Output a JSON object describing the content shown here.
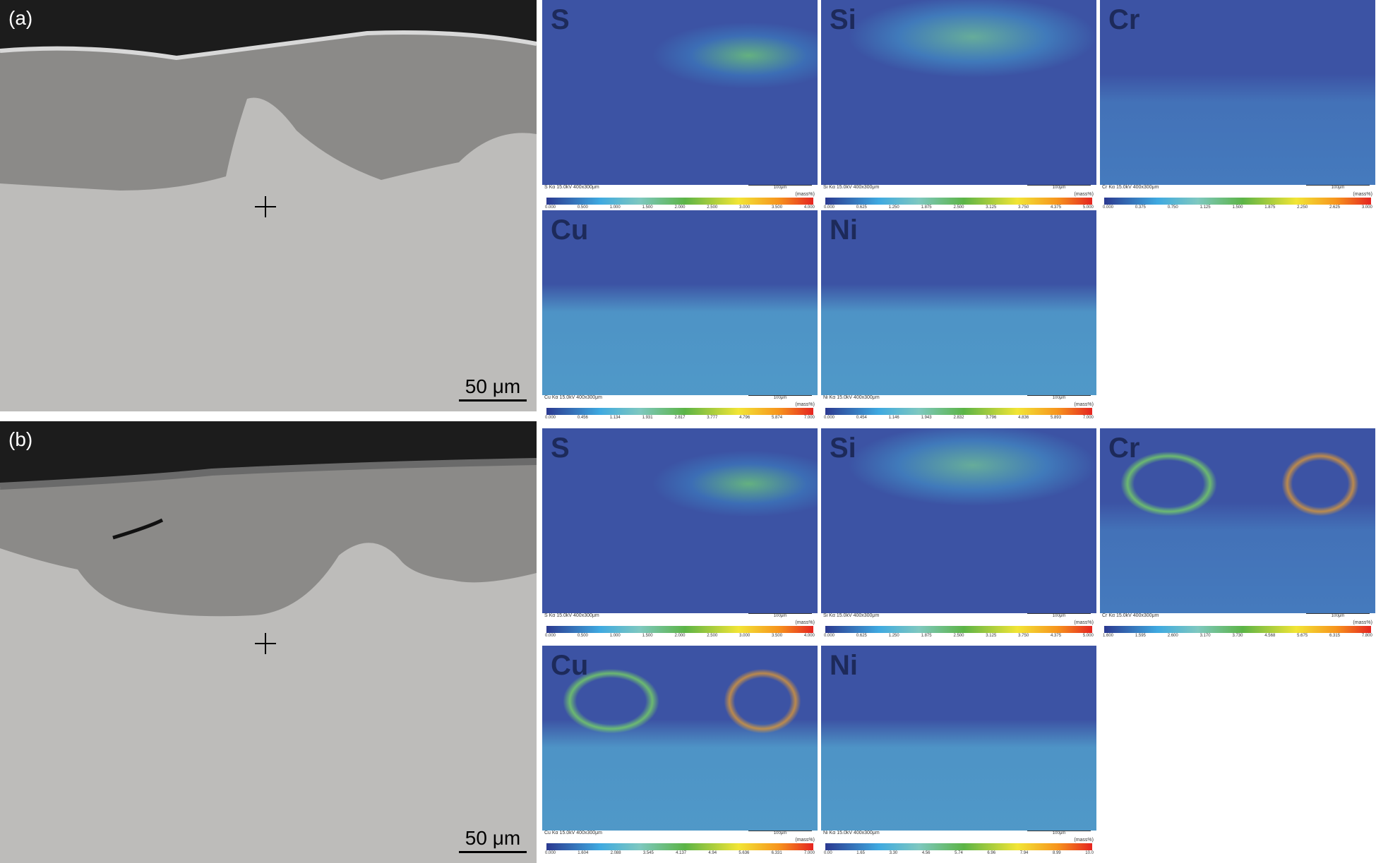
{
  "panels": [
    {
      "label": "(a)",
      "scale_bar": "50 μm",
      "maps": [
        {
          "element": "S",
          "caption": "S Kα 15.0kV 400x300μm",
          "scale": "100μm",
          "unit": "(mass%)",
          "ticks": [
            "0.000",
            "0.500",
            "1.000",
            "1.500",
            "2.000",
            "2.500",
            "3.000",
            "3.500",
            "4.000"
          ]
        },
        {
          "element": "Si",
          "caption": "Si Kα 15.0kV 400x300μm",
          "scale": "100μm",
          "unit": "(mass%)",
          "ticks": [
            "0.000",
            "0.625",
            "1.250",
            "1.875",
            "2.500",
            "3.125",
            "3.750",
            "4.375",
            "5.000"
          ]
        },
        {
          "element": "Cr",
          "caption": "Cr Kα 15.0kV 400x300μm",
          "scale": "100μm",
          "unit": "(mass%)",
          "ticks": [
            "0.000",
            "0.375",
            "0.750",
            "1.125",
            "1.500",
            "1.875",
            "2.250",
            "2.625",
            "3.000"
          ]
        },
        {
          "element": "Cu",
          "caption": "Cu Kα 15.0kV 400x300μm",
          "scale": "100μm",
          "unit": "(mass%)",
          "ticks": [
            "0.000",
            "0.456",
            "1.134",
            "1.931",
            "2.817",
            "3.777",
            "4.796",
            "5.874",
            "7.000"
          ]
        },
        {
          "element": "Ni",
          "caption": "Ni Kα 15.0kV 400x300μm",
          "scale": "100μm",
          "unit": "(mass%)",
          "ticks": [
            "0.000",
            "0.454",
            "1.146",
            "1.943",
            "2.832",
            "3.796",
            "4.836",
            "5.893",
            "7.000"
          ]
        }
      ]
    },
    {
      "label": "(b)",
      "scale_bar": "50 μm",
      "maps": [
        {
          "element": "S",
          "caption": "S Kα 15.0kV 400x300μm",
          "scale": "100μm",
          "unit": "(mass%)",
          "ticks": [
            "0.000",
            "0.500",
            "1.000",
            "1.500",
            "2.000",
            "2.500",
            "3.000",
            "3.500",
            "4.000"
          ]
        },
        {
          "element": "Si",
          "caption": "Si Kα 15.0kV 400x300μm",
          "scale": "100μm",
          "unit": "(mass%)",
          "ticks": [
            "0.000",
            "0.625",
            "1.250",
            "1.875",
            "2.500",
            "3.125",
            "3.750",
            "4.375",
            "5.000"
          ]
        },
        {
          "element": "Cr",
          "caption": "Cr Kα 15.0kV 400x300μm",
          "scale": "100μm",
          "unit": "(mass%)",
          "ticks": [
            "1.600",
            "1.595",
            "2.600",
            "3.170",
            "3.730",
            "4.568",
            "5.675",
            "6.315",
            "7.800"
          ]
        },
        {
          "element": "Cu",
          "caption": "Cu Kα 15.0kV 400x300μm",
          "scale": "100μm",
          "unit": "(mass%)",
          "ticks": [
            "0.000",
            "1.604",
            "2.088",
            "3.545",
            "4.137",
            "4.94",
            "5.636",
            "6.331",
            "7.000"
          ]
        },
        {
          "element": "Ni",
          "caption": "Ni Kα 15.0kV 400x300μm",
          "scale": "100μm",
          "unit": "(mass%)",
          "ticks": [
            "0.00",
            "1.65",
            "3.30",
            "4.56",
            "5.74",
            "6.96",
            "7.94",
            "8.99",
            "10.0"
          ]
        }
      ]
    }
  ],
  "colors": {
    "map_background": "#3c53a4",
    "substrate": "#bdbcba",
    "oxide_layer": "#8b8a88",
    "mount": "#1c1c1c"
  }
}
